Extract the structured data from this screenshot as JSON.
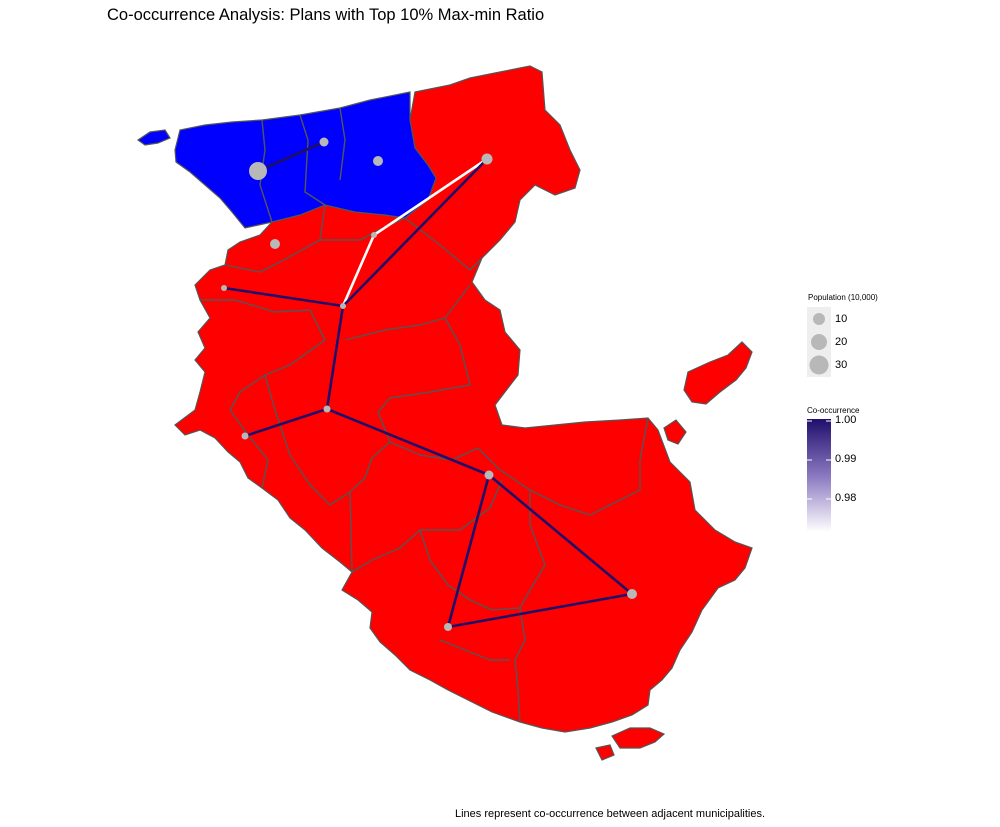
{
  "title": "Co-occurrence Analysis: Plans with Top 10% Max-min Ratio",
  "caption": "Lines represent co-occurrence between adjacent municipalities.",
  "colors": {
    "district_red": "#ff0000",
    "district_blue": "#0000ff",
    "border": "#555555",
    "node": "#b8b8b8",
    "edge_high": "#1f0f6b",
    "edge_low": "#ffffff"
  },
  "legend_population": {
    "title": "Population (10,000)",
    "items": [
      {
        "label": "10",
        "value": 10
      },
      {
        "label": "20",
        "value": 20
      },
      {
        "label": "30",
        "value": 30
      }
    ]
  },
  "legend_cooccurrence": {
    "title": "Co-occurrence",
    "ticks": [
      "1.00",
      "0.99",
      "0.98"
    ],
    "range": [
      0.971,
      1.0
    ]
  },
  "map_data": {
    "districts": [
      {
        "id": "north",
        "color": "blue"
      },
      {
        "id": "main",
        "color": "red"
      }
    ],
    "edges": [
      {
        "co_occurrence": 1.0
      },
      {
        "co_occurrence": 0.97
      },
      {
        "co_occurrence": 0.97
      },
      {
        "co_occurrence": 1.0
      },
      {
        "co_occurrence": 1.0
      },
      {
        "co_occurrence": 1.0
      },
      {
        "co_occurrence": 1.0
      },
      {
        "co_occurrence": 1.0
      },
      {
        "co_occurrence": 1.0
      },
      {
        "co_occurrence": 1.0
      },
      {
        "co_occurrence": 1.0
      }
    ]
  }
}
